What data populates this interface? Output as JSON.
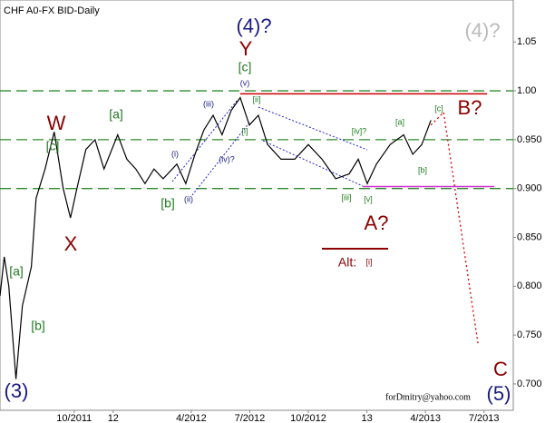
{
  "chart_data": {
    "type": "line",
    "title": "CHF A0-FX BID-Daily",
    "xlim": [
      -3.8,
      22.5
    ],
    "ylim": [
      0.673,
      1.093
    ],
    "xticks": [
      {
        "value": 0,
        "label": "10/2011"
      },
      {
        "value": 2,
        "label": "12"
      },
      {
        "value": 6,
        "label": "4/2012"
      },
      {
        "value": 9,
        "label": "7/2012"
      },
      {
        "value": 12,
        "label": "10/2012"
      },
      {
        "value": 15,
        "label": "13"
      },
      {
        "value": 18,
        "label": "4/2013"
      },
      {
        "value": 21,
        "label": "7/2013"
      }
    ],
    "yticks": [
      1.05,
      {
        "value": 1.0,
        "label": "1.00"
      },
      {
        "value": 0.95,
        "label": "0.950"
      },
      {
        "value": 0.9,
        "label": "0.900"
      },
      {
        "value": 0.85,
        "label": "0.850"
      },
      {
        "value": 0.8,
        "label": "0.800"
      },
      {
        "value": 0.75,
        "label": "0.750"
      },
      {
        "value": 0.7,
        "label": "0.700"
      }
    ],
    "levels": [
      1.0,
      0.95,
      0.9
    ],
    "level_color": "#2e8b2e",
    "series": [
      {
        "color": "#000000",
        "x": [
          -3.8,
          -3.58,
          -3.35,
          -2.98,
          -2.65,
          -2.19,
          -1.95,
          -1.49,
          -1.02,
          -0.56,
          -0.19,
          0.14,
          0.6,
          1.07,
          1.53,
          2.23,
          2.7,
          3.16,
          3.63,
          4.09,
          4.56,
          5.26,
          5.72,
          6.19,
          6.65,
          7.12,
          7.58,
          8.05,
          8.51,
          8.98,
          9.44,
          9.91,
          10.6,
          11.3,
          12,
          12.7,
          13.4,
          14.09,
          14.56,
          15.02,
          15.49,
          16.19,
          16.88,
          17.35,
          17.81,
          18.28
        ],
        "values": [
          0.79,
          0.83,
          0.8,
          0.705,
          0.78,
          0.82,
          0.89,
          0.92,
          0.958,
          0.9,
          0.87,
          0.9,
          0.94,
          0.95,
          0.92,
          0.955,
          0.93,
          0.92,
          0.905,
          0.92,
          0.91,
          0.925,
          0.905,
          0.935,
          0.96,
          0.975,
          0.955,
          0.98,
          0.993,
          0.965,
          0.975,
          0.945,
          0.93,
          0.93,
          0.945,
          0.93,
          0.91,
          0.915,
          0.93,
          0.905,
          0.925,
          0.945,
          0.955,
          0.935,
          0.945,
          0.97
        ]
      },
      {
        "color": "#dd0000",
        "dashed": true,
        "x": [
          18.28,
          18.93,
          20.7
        ],
        "values": [
          0.965,
          0.978,
          0.74
        ]
      }
    ],
    "hlines": [
      {
        "color": "#cc0000",
        "y": 0.997,
        "x": [
          8.51,
          21.16
        ]
      },
      {
        "color": "#cc33cc",
        "y": 0.902,
        "x": [
          14.79,
          21.53
        ]
      }
    ],
    "annotations": [
      "(4)?",
      "Y",
      "[c]",
      "(v)",
      "[ii]",
      "(iii)",
      "[i]",
      "(i)",
      "(iv)?",
      "(ii)",
      "[b]",
      "W",
      "[a]",
      "[c]",
      "X",
      "[a]",
      "[b]",
      "(3)",
      "[iv]?",
      "[a]",
      "[c]",
      "B?",
      "[b]",
      "[iii]",
      "[v]",
      "A?",
      "Alt:",
      "[i]",
      "(4)?",
      "C",
      "(5)",
      "forDmitry@yahoo.com"
    ]
  }
}
